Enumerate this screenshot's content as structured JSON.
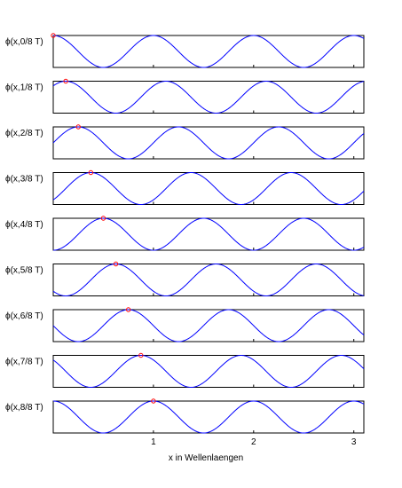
{
  "chart_data": {
    "type": "line",
    "function": "cos(2π(x − t/T))",
    "xlabel": "x in Wellenlaengen",
    "xlim": [
      0,
      3.1
    ],
    "ylim": [
      -1,
      1
    ],
    "xticks": [
      1,
      2,
      3
    ],
    "xtick_labels": [
      "1",
      "2",
      "3"
    ],
    "line_color": "#0000ff",
    "marker_color": "#ff0000",
    "grid": false,
    "panels": [
      {
        "ylabel": "ϕ(x,0/8 T)",
        "t_over_T": 0.0,
        "marker": {
          "x": 0.0,
          "y": 1
        }
      },
      {
        "ylabel": "ϕ(x,1/8 T)",
        "t_over_T": 0.125,
        "marker": {
          "x": 0.125,
          "y": 1
        }
      },
      {
        "ylabel": "ϕ(x,2/8 T)",
        "t_over_T": 0.25,
        "marker": {
          "x": 0.25,
          "y": 1
        }
      },
      {
        "ylabel": "ϕ(x,3/8 T)",
        "t_over_T": 0.375,
        "marker": {
          "x": 0.375,
          "y": 1
        }
      },
      {
        "ylabel": "ϕ(x,4/8 T)",
        "t_over_T": 0.5,
        "marker": {
          "x": 0.5,
          "y": 1
        }
      },
      {
        "ylabel": "ϕ(x,5/8 T)",
        "t_over_T": 0.625,
        "marker": {
          "x": 0.625,
          "y": 1
        }
      },
      {
        "ylabel": "ϕ(x,6/8 T)",
        "t_over_T": 0.75,
        "marker": {
          "x": 0.75,
          "y": 1
        }
      },
      {
        "ylabel": "ϕ(x,7/8 T)",
        "t_over_T": 0.875,
        "marker": {
          "x": 0.875,
          "y": 1
        }
      },
      {
        "ylabel": "ϕ(x,8/8 T)",
        "t_over_T": 1.0,
        "marker": {
          "x": 1.0,
          "y": 1
        }
      }
    ]
  }
}
